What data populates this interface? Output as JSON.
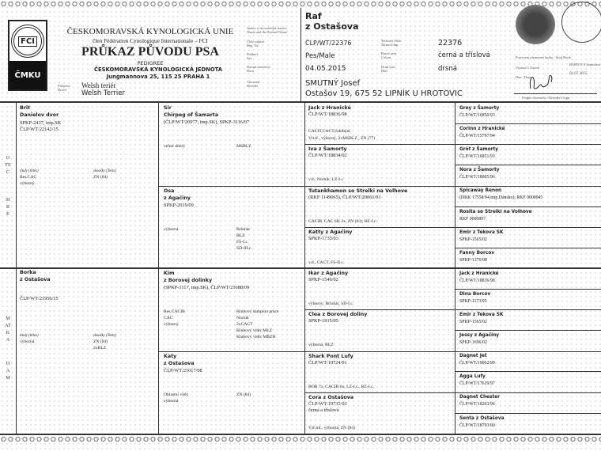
{
  "header": {
    "org_title": "ČESKOMORAVSKÁ KYNOLOGICKÁ UNIE",
    "org_subtitle": "člen Fédération Cynologique Internationale – FCI",
    "doc_title": "PRŮKAZ PŮVODU PSA",
    "doc_subtitle": "PEDIGREE",
    "jednota": "ČESKOMORAVSKÁ KYNOLOGICKÁ JEDNOTA",
    "address": "Jungmannova 25, 115 25 PRAHA 1",
    "logo_text": "FCI",
    "logo_cmku": "ČMKU",
    "breed_label_cz": "Plemeno",
    "breed_label_en": "Breed",
    "breed_cz": "Welsh teriér",
    "breed_en": "Welsh Terrier",
    "labels": {
      "name": [
        "Jméno a chovatelská stanice",
        "Name and the Kennel Name"
      ],
      "reg": [
        "Číslo zápisu",
        "Reg. Nr."
      ],
      "sex": [
        "Pohlaví",
        "Sex"
      ],
      "born": [
        "Datum narození",
        "Born"
      ],
      "breeder": [
        "Chovatel",
        "Breeder"
      ],
      "chip": [
        "Tetovací číslo",
        "Tattoo/Chip"
      ],
      "colour": [
        "Barva srsti",
        "Colour"
      ],
      "hair": [
        "Druh srsti",
        "Hair"
      ]
    },
    "stud_book": "Potvrzení plemenné knihy / Stud Book",
    "issued_label": "Vystavil / Issued",
    "issued_by": "BÁRTOVÁ Stanislava",
    "date_label": "Dne / Date",
    "date": "02.07.2015",
    "sign_label": "Podpis chovatele / Breeder's Sign."
  },
  "dog": {
    "name": "Raf",
    "kennel": "z Ostašova",
    "reg": "ČLP/WT/22376",
    "sex": "Pes/Male",
    "born": "04.05.2015",
    "breeder": "SMUTNÝ Josef",
    "breeder_address": "Ostašov 19, 675 52 LIPNÍK U HROTOVIC",
    "chip": "22376",
    "colour": "černá a tříslová",
    "hair": "drsná"
  },
  "side": {
    "sire_cz": "OTEC",
    "sire_en": "SIRE",
    "dam_cz": "MATKA",
    "dam_en": "DAM"
  },
  "gen1": [
    {
      "lines": [
        "Brit",
        "Danielov dvor"
      ],
      "reg": [
        "SPKP-2437, imp.SK",
        "ČLP/WT/22142/15"
      ],
      "titles_label": "tituly (titles)",
      "tests_label": "zkoušky (Tests)",
      "left": [
        "Res.CAC",
        "výborný"
      ],
      "right": [
        "ZN (84)"
      ]
    },
    {
      "lines": [
        "Borka",
        "z Ostašova"
      ],
      "reg": [
        "",
        "ČLP/WT/21956/15"
      ],
      "titles_label": "tituly (titles)",
      "tests_label": "zkoušky (Tests)",
      "left": [
        "výborná"
      ],
      "right": [
        "ZN (84)",
        "2xBLZ"
      ]
    }
  ],
  "gen2": [
    {
      "lines": [
        "Sir",
        "Chirpeg of Šamarta"
      ],
      "reg": "(ČLP/WT/20977, imp.SK), SPKP-3116/07",
      "left": [
        "velmi dobrý"
      ],
      "right": [
        "MSBLZ"
      ]
    },
    {
      "lines": [
        "Osa",
        "z Agačiny"
      ],
      "reg": "SPKP-2019/09",
      "left": [
        "výborná"
      ],
      "right": [
        "Brlohár",
        "BLZ",
        "FS-I.c.",
        "SD-III.c."
      ]
    },
    {
      "lines": [
        "Kim",
        "z Borovej dolinky"
      ],
      "reg": "(SPKP-3117, imp.SK), ČLP/WT/21688/09",
      "left": [
        "Res.CACIB",
        "CAC",
        "výborný"
      ],
      "right": [
        "Klubový šampion práce",
        "Norník",
        "2xCACT",
        "Klubový vítěz MLZ",
        "Klubový vítěz MBZH"
      ]
    },
    {
      "lines": [
        "Katy",
        "z Ostašova"
      ],
      "reg": "ČLP/WT/21017/08",
      "left": [
        "Oblastní vítěz",
        "výborná"
      ],
      "right": [
        "ZN (84)"
      ]
    }
  ],
  "gen3": [
    {
      "name": "Jack z Hranické",
      "reg": [
        "ČLP/WT/18836/98"
      ],
      "notes": [
        "CACIT,CACT,Jubilejní",
        "Vít.tř., výborný, 2xMSBLZ , ZN (77)"
      ]
    },
    {
      "name": "Iva z Šamorty",
      "reg": [
        "ČLP/WT/18834/02"
      ],
      "notes": [
        "v.d., Norník, LZ-I.c."
      ]
    },
    {
      "name": "Tutankhamon so Strelki na Volhove",
      "reg": [
        "(RKF 1149065), ČLP/WT/20061/01"
      ],
      "notes": [
        "CACIB, CAC SK 2x, ZN (63), BZ-I.c."
      ]
    },
    {
      "name": "Katty z Agačiny",
      "reg": [
        "SPKP-1735/03"
      ],
      "notes": [
        "v.d., CACT, FS-II.c."
      ]
    },
    {
      "name": "Ikar z Agačiny",
      "reg": [
        "SPKP-1546/02"
      ],
      "notes": [
        "výborný, Brlohár, SD-I.c."
      ]
    },
    {
      "name": "Clea z Borovej doliny",
      "reg": [
        "SPKP-1915/05"
      ],
      "notes": [
        "výborná, BLZ"
      ]
    },
    {
      "name": "Shark Pont Lufy",
      "reg": [
        "ČLP/WT/19724/01"
      ],
      "notes": [
        "BOB 7x, CACIB 6x, LZ-I.c., BZ-I.c."
      ]
    },
    {
      "name": "Cora z Ostašova",
      "reg": [
        "ČLP/WT/19735/03",
        "černá a tříslová"
      ],
      "notes": [
        "V.tř.ml., výborná, ZN (84)"
      ]
    }
  ],
  "gen4": [
    {
      "name": "Grey z Šamorty",
      "reg": "ČLP/WT/16850/93"
    },
    {
      "name": "Corinn z Hranické",
      "reg": "ČLP/WT/15797/94"
    },
    {
      "name": "Gróf z Šamorty",
      "reg": "ČLP/WT/16851/93"
    },
    {
      "name": "Nora z Šamorty",
      "reg": "ČLP/WT/18005/96"
    },
    {
      "name": "Spicaway Renon",
      "reg": "(DKK 17558/94,imp.Dánsko), RKF 0000045"
    },
    {
      "name": "Rosita so Strelki na Volhove",
      "reg": "RKF 0000897"
    },
    {
      "name": "Emir z Tekova SK",
      "reg": "SPKP-1565/02"
    },
    {
      "name": "Fanny Borcov",
      "reg": "SPKP-1376/98"
    },
    {
      "name": "Jack z Hranické",
      "reg": "ČLP/WT/18836/98"
    },
    {
      "name": "Dina Borcov",
      "reg": "SPKP-1173/95"
    },
    {
      "name": "Emir z Tekova SK",
      "reg": "SPKP-1565/02"
    },
    {
      "name": "Jessy z Agačiny",
      "reg": "SPKP-1696/02"
    },
    {
      "name": "Dagnet Jet",
      "reg": "ČLP/WT/19062/99"
    },
    {
      "name": "Agga Lufy",
      "reg": "ČLP/WT/17619/97"
    },
    {
      "name": "Dagnet Chester",
      "reg": "ČLP/WT/18203/96"
    },
    {
      "name": "Senta z Ostašova",
      "reg": "ČLP/WT/18793/00"
    }
  ]
}
